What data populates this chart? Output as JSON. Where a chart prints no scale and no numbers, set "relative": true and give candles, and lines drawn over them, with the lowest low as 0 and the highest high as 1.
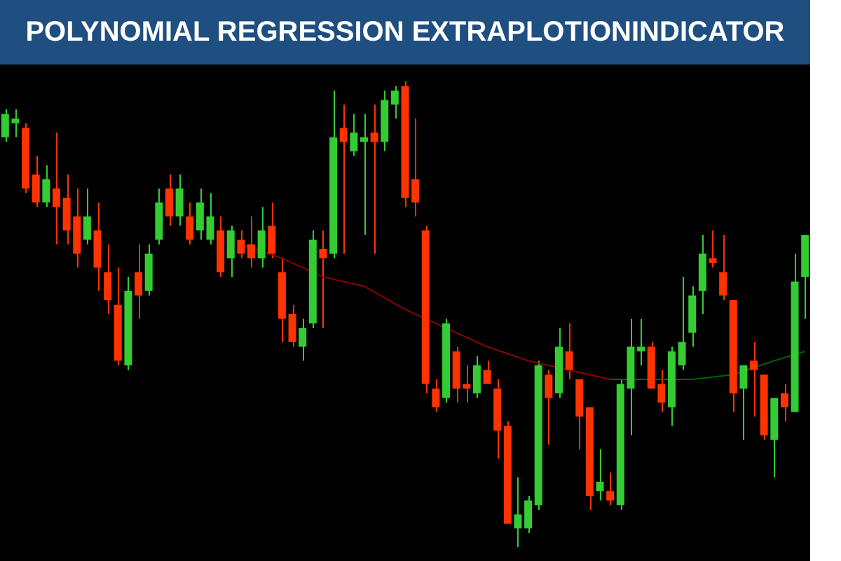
{
  "chart_data": {
    "type": "candlestick",
    "title": "POLYNOMIAL REGRESSION EXTRAPLOTIONINDICATOR",
    "relative": true,
    "categories": [
      null,
      null,
      null,
      null,
      null,
      null,
      null,
      null,
      null,
      null,
      null,
      null,
      null,
      null,
      null,
      null,
      null,
      null,
      null,
      null,
      null,
      null,
      null,
      null,
      null,
      null,
      null,
      null,
      null,
      null,
      null,
      null,
      null,
      null,
      null,
      null,
      null,
      null,
      null,
      null,
      null,
      null,
      null,
      null,
      null,
      null,
      null,
      null,
      null,
      null,
      null,
      null,
      null,
      null,
      null,
      null,
      null,
      null,
      null,
      null,
      null,
      null,
      null,
      null,
      null,
      null,
      null,
      null,
      null,
      null,
      null,
      null,
      null,
      null,
      null,
      null,
      null,
      null,
      null
    ],
    "ohlc": [
      [
        0.88,
        0.94,
        0.87,
        0.93
      ],
      [
        0.91,
        0.94,
        0.88,
        0.92
      ],
      [
        0.9,
        0.91,
        0.76,
        0.77
      ],
      [
        0.8,
        0.84,
        0.73,
        0.74
      ],
      [
        0.74,
        0.82,
        0.73,
        0.79
      ],
      [
        0.77,
        0.89,
        0.65,
        0.73
      ],
      [
        0.75,
        0.8,
        0.65,
        0.68
      ],
      [
        0.71,
        0.77,
        0.6,
        0.63
      ],
      [
        0.66,
        0.77,
        0.65,
        0.71
      ],
      [
        0.68,
        0.74,
        0.55,
        0.6
      ],
      [
        0.59,
        0.65,
        0.5,
        0.53
      ],
      [
        0.52,
        0.6,
        0.39,
        0.4
      ],
      [
        0.39,
        0.58,
        0.38,
        0.55
      ],
      [
        0.59,
        0.65,
        0.49,
        0.54
      ],
      [
        0.55,
        0.65,
        0.54,
        0.63
      ],
      [
        0.66,
        0.77,
        0.65,
        0.74
      ],
      [
        0.77,
        0.8,
        0.69,
        0.71
      ],
      [
        0.71,
        0.8,
        0.69,
        0.77
      ],
      [
        0.71,
        0.74,
        0.65,
        0.66
      ],
      [
        0.68,
        0.77,
        0.66,
        0.74
      ],
      [
        0.66,
        0.76,
        0.65,
        0.71
      ],
      [
        0.68,
        0.71,
        0.58,
        0.59
      ],
      [
        0.62,
        0.69,
        0.58,
        0.68
      ],
      [
        0.66,
        0.68,
        0.62,
        0.63
      ],
      [
        0.65,
        0.71,
        0.6,
        0.62
      ],
      [
        0.62,
        0.73,
        0.6,
        0.68
      ],
      [
        0.69,
        0.74,
        0.62,
        0.63
      ],
      [
        0.59,
        0.62,
        0.44,
        0.49
      ],
      [
        0.5,
        0.52,
        0.43,
        0.44
      ],
      [
        0.43,
        0.49,
        0.4,
        0.47
      ],
      [
        0.48,
        0.68,
        0.47,
        0.66
      ],
      [
        0.64,
        0.68,
        0.47,
        0.62
      ],
      [
        0.63,
        0.98,
        0.62,
        0.88
      ],
      [
        0.9,
        0.95,
        0.63,
        0.87
      ],
      [
        0.85,
        0.93,
        0.84,
        0.89
      ],
      [
        0.87,
        0.93,
        0.67,
        0.88
      ],
      [
        0.89,
        0.95,
        0.63,
        0.87
      ],
      [
        0.87,
        0.98,
        0.85,
        0.96
      ],
      [
        0.95,
        0.99,
        0.92,
        0.98
      ],
      [
        0.99,
        1.0,
        0.73,
        0.75
      ],
      [
        0.79,
        0.92,
        0.71,
        0.74
      ],
      [
        0.68,
        0.69,
        0.33,
        0.35
      ],
      [
        0.34,
        0.36,
        0.29,
        0.3
      ],
      [
        0.32,
        0.49,
        0.31,
        0.48
      ],
      [
        0.42,
        0.43,
        0.31,
        0.34
      ],
      [
        0.35,
        0.39,
        0.31,
        0.34
      ],
      [
        0.33,
        0.41,
        0.32,
        0.39
      ],
      [
        0.38,
        0.4,
        0.35,
        0.35
      ],
      [
        0.34,
        0.36,
        0.19,
        0.25
      ],
      [
        0.26,
        0.27,
        0.05,
        0.05
      ],
      [
        0.04,
        0.15,
        0,
        0.07
      ],
      [
        0.04,
        0.11,
        0.03,
        0.1
      ],
      [
        0.09,
        0.4,
        0.08,
        0.39
      ],
      [
        0.37,
        0.38,
        0.22,
        0.32
      ],
      [
        0.33,
        0.47,
        0.32,
        0.43
      ],
      [
        0.42,
        0.48,
        0.36,
        0.38
      ],
      [
        0.36,
        0.36,
        0.21,
        0.28
      ],
      [
        0.3,
        0.3,
        0.08,
        0.11
      ],
      [
        0.12,
        0.21,
        0.1,
        0.14
      ],
      [
        0.12,
        0.16,
        0.09,
        0.1
      ],
      [
        0.09,
        0.36,
        0.08,
        0.35
      ],
      [
        0.34,
        0.49,
        0.24,
        0.43
      ],
      [
        0.42,
        0.49,
        0.39,
        0.43
      ],
      [
        0.43,
        0.44,
        0.34,
        0.34
      ],
      [
        0.35,
        0.38,
        0.29,
        0.31
      ],
      [
        0.3,
        0.43,
        0.26,
        0.42
      ],
      [
        0.39,
        0.58,
        0.38,
        0.44
      ],
      [
        0.46,
        0.56,
        0.43,
        0.54
      ],
      [
        0.55,
        0.67,
        0.5,
        0.63
      ],
      [
        0.62,
        0.68,
        0.6,
        0.61
      ],
      [
        0.59,
        0.67,
        0.53,
        0.54
      ],
      [
        0.53,
        0.53,
        0.29,
        0.33
      ],
      [
        0.34,
        0.39,
        0.23,
        0.39
      ],
      [
        0.4,
        0.44,
        0.28,
        0.38
      ],
      [
        0.37,
        0.37,
        0.23,
        0.24
      ],
      [
        0.23,
        0.32,
        0.15,
        0.32
      ],
      [
        0.33,
        0.35,
        0.27,
        0.3
      ],
      [
        0.29,
        0.63,
        0.29,
        0.57
      ],
      [
        0.58,
        0.67,
        0.49,
        0.67
      ]
    ],
    "colors": [
      "#33cc33",
      "#33cc33",
      "#ff3300",
      "#ff3300",
      "#33cc33",
      "#ff3300",
      "#ff3300",
      "#ff3300",
      "#33cc33",
      "#ff3300",
      "#ff3300",
      "#ff3300",
      "#33cc33",
      "#ff3300",
      "#33cc33",
      "#33cc33",
      "#ff3300",
      "#33cc33",
      "#ff3300",
      "#33cc33",
      "#33cc33",
      "#ff3300",
      "#33cc33",
      "#ff3300",
      "#ff3300",
      "#33cc33",
      "#ff3300",
      "#ff3300",
      "#ff3300",
      "#33cc33",
      "#33cc33",
      "#ff3300",
      "#33cc33",
      "#ff3300",
      "#33cc33",
      "#33cc33",
      "#ff3300",
      "#33cc33",
      "#33cc33",
      "#ff3300",
      "#ff3300",
      "#ff3300",
      "#ff3300",
      "#33cc33",
      "#ff3300",
      "#ff3300",
      "#33cc33",
      "#ff3300",
      "#ff3300",
      "#ff3300",
      "#33cc33",
      "#33cc33",
      "#33cc33",
      "#ff3300",
      "#33cc33",
      "#ff3300",
      "#ff3300",
      "#ff3300",
      "#33cc33",
      "#ff3300",
      "#33cc33",
      "#33cc33",
      "#33cc33",
      "#ff3300",
      "#ff3300",
      "#33cc33",
      "#33cc33",
      "#33cc33",
      "#33cc33",
      "#ff3300",
      "#ff3300",
      "#ff3300",
      "#33cc33",
      "#ff3300",
      "#ff3300",
      "#33cc33",
      "#ff3300",
      "#33cc33",
      "#33cc33"
    ],
    "series": [
      {
        "type": "line",
        "color": "#8b0000",
        "values": [
          null,
          null,
          null,
          null,
          null,
          null,
          null,
          null,
          null,
          null,
          null,
          null,
          null,
          null,
          null,
          null,
          null,
          null,
          null,
          null,
          null,
          null,
          null,
          0.65,
          null,
          null,
          null,
          0.62,
          null,
          null,
          null,
          0.58,
          null,
          null,
          null,
          0.56,
          null,
          null,
          null,
          0.51,
          null,
          null,
          null,
          0.47,
          null,
          null,
          null,
          0.43,
          null,
          null,
          null,
          0.4,
          null,
          null,
          null,
          0.38,
          null,
          null,
          null,
          0.36,
          null,
          null,
          null,
          null,
          null,
          null,
          null,
          null,
          null,
          null,
          null,
          null,
          null,
          null,
          null,
          null,
          null,
          null,
          null
        ]
      },
      {
        "type": "line",
        "color": "#006400",
        "values": [
          null,
          null,
          null,
          null,
          null,
          null,
          null,
          null,
          null,
          null,
          null,
          null,
          null,
          null,
          null,
          null,
          null,
          null,
          null,
          null,
          null,
          null,
          null,
          null,
          null,
          null,
          null,
          null,
          null,
          null,
          null,
          null,
          null,
          null,
          null,
          null,
          null,
          null,
          null,
          null,
          null,
          null,
          null,
          null,
          null,
          null,
          null,
          null,
          null,
          null,
          null,
          null,
          null,
          null,
          null,
          null,
          null,
          null,
          null,
          0.36,
          null,
          null,
          null,
          0.36,
          null,
          null,
          null,
          0.36,
          null,
          null,
          null,
          0.37,
          null,
          null,
          null,
          0.4,
          null,
          null,
          0.42
        ]
      }
    ]
  }
}
